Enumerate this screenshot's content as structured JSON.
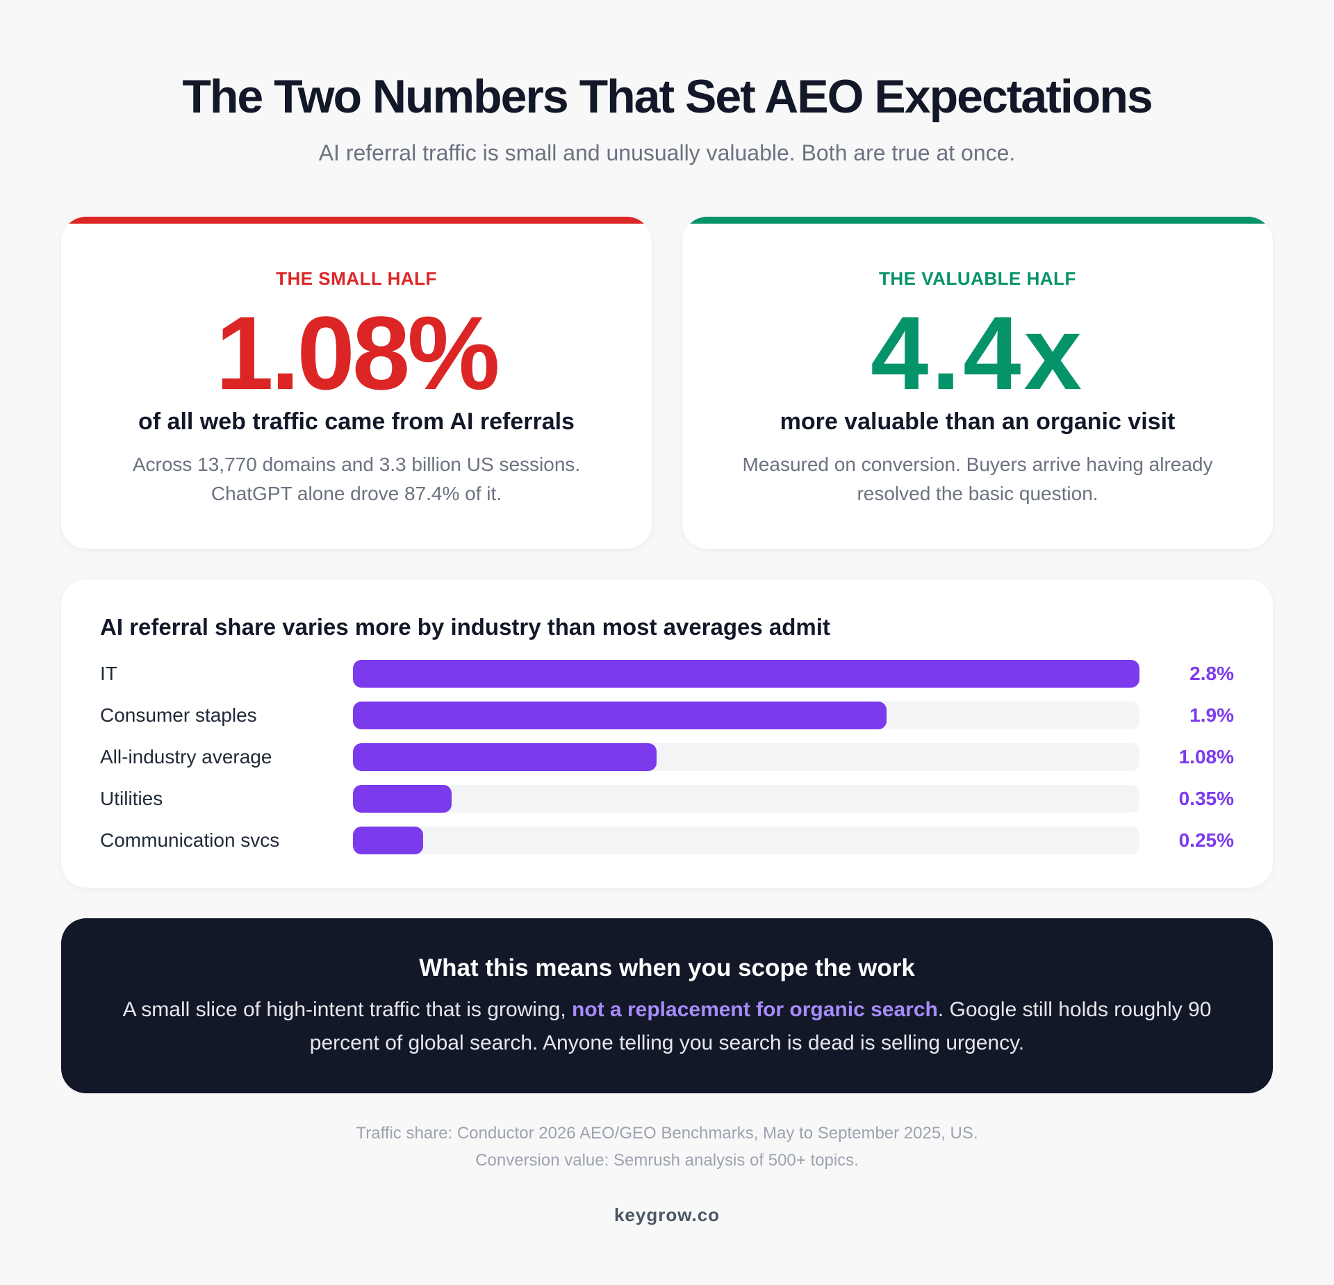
{
  "header": {
    "title": "The Two Numbers That Set AEO Expectations",
    "subtitle": "AI referral traffic is small and unusually valuable. Both are true at once."
  },
  "cards": {
    "small": {
      "kicker": "THE SMALL HALF",
      "big_value": "1.08%",
      "headline": "of all web traffic came from AI referrals",
      "desc_line1": "Across 13,770 domains and 3.3 billion US sessions.",
      "desc_line2": "ChatGPT alone drove 87.4% of it."
    },
    "valuable": {
      "kicker": "THE VALUABLE HALF",
      "big_value": "4.4x",
      "headline": "more valuable than an organic visit",
      "desc_line1": "Measured on conversion. Buyers arrive having already",
      "desc_line2": "resolved the basic question."
    }
  },
  "chart_data": {
    "type": "bar",
    "orientation": "horizontal",
    "title": "AI referral share varies more by industry than most averages admit",
    "categories": [
      "IT",
      "Consumer staples",
      "All-industry average",
      "Utilities",
      "Communication svcs"
    ],
    "values": [
      2.8,
      1.9,
      1.08,
      0.35,
      0.25
    ],
    "value_labels": [
      "2.8%",
      "1.9%",
      "1.08%",
      "0.35%",
      "0.25%"
    ],
    "xlim": [
      0,
      2.8
    ],
    "grid": false,
    "bar_color": "#7c3aed",
    "track_color": "#f3f4f6"
  },
  "callout": {
    "title": "What this means when you scope the work",
    "body_pre": "A small slice of high-intent traffic that is growing, ",
    "body_highlight": "not a replacement for organic search",
    "body_post": ". Google still holds roughly 90 percent of global search. Anyone telling you search is dead is selling urgency."
  },
  "footer": {
    "source_line1": "Traffic share: Conductor 2026 AEO/GEO Benchmarks, May to September 2025, US.",
    "source_line2": "Conversion value: Semrush analysis of 500+ topics.",
    "brand": "keygrow.co"
  },
  "colors": {
    "small_accent": "#dc2626",
    "valuable_accent": "#05936a",
    "bar": "#7c3aed",
    "callout_bg": "#121828"
  }
}
